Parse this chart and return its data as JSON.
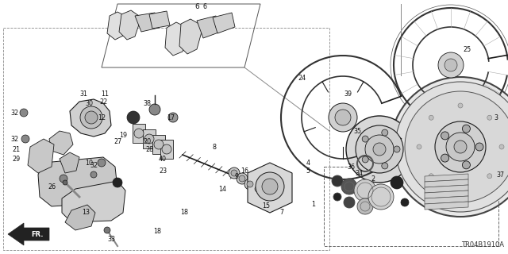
{
  "bg_color": "#ffffff",
  "line_color": "#1a1a1a",
  "diagram_code": "TR04B1910A",
  "fig_w": 6.4,
  "fig_h": 3.2,
  "dpi": 100
}
